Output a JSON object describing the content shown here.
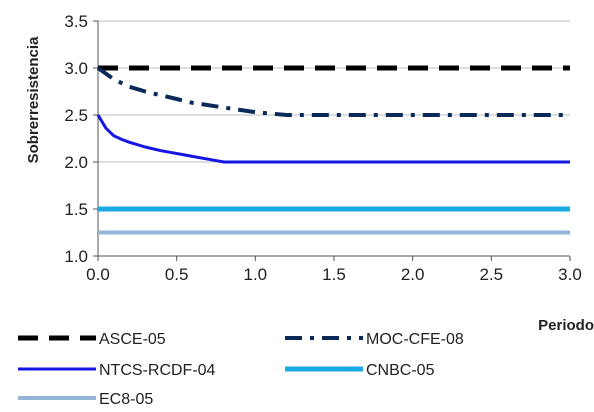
{
  "chart_data": {
    "type": "line",
    "title": "",
    "xlabel": "Periodo",
    "ylabel": "Sobrerresistencia",
    "xlim": [
      0.0,
      3.0
    ],
    "ylim": [
      1.0,
      3.5
    ],
    "xticks": [
      "0.0",
      "0.5",
      "1.0",
      "1.5",
      "2.0",
      "2.5",
      "3.0"
    ],
    "yticks": [
      "1.0",
      "1.5",
      "2.0",
      "2.5",
      "3.0",
      "3.5"
    ],
    "grid": "horizontal",
    "legend_position": "bottom",
    "series": [
      {
        "name": "ASCE-05",
        "color": "#000000",
        "style": "dashed",
        "x": [
          0.0,
          3.0
        ],
        "y": [
          3.0,
          3.0
        ]
      },
      {
        "name": "MOC-CFE-08",
        "color": "#0b2a5a",
        "style": "dash-dot",
        "x": [
          0.0,
          0.1,
          0.2,
          0.3,
          0.4,
          0.5,
          0.6,
          0.8,
          1.0,
          1.2,
          1.25,
          2.0,
          3.0
        ],
        "y": [
          3.0,
          2.88,
          2.8,
          2.75,
          2.71,
          2.67,
          2.63,
          2.58,
          2.53,
          2.5,
          2.5,
          2.5,
          2.5
        ]
      },
      {
        "name": "NTCS-RCDF-04",
        "color": "#1515e6",
        "style": "solid",
        "x": [
          0.0,
          0.05,
          0.1,
          0.15,
          0.2,
          0.3,
          0.4,
          0.5,
          0.6,
          0.7,
          0.8,
          0.85,
          1.0,
          2.0,
          3.0
        ],
        "y": [
          2.5,
          2.36,
          2.28,
          2.24,
          2.21,
          2.16,
          2.12,
          2.09,
          2.06,
          2.03,
          2.0,
          2.0,
          2.0,
          2.0,
          2.0
        ]
      },
      {
        "name": "CNBC-05",
        "color": "#1aa9e3",
        "style": "solid",
        "x": [
          0.0,
          3.0
        ],
        "y": [
          1.5,
          1.5
        ]
      },
      {
        "name": "EC8-05",
        "color": "#93b6d8",
        "style": "solid",
        "x": [
          0.0,
          3.0
        ],
        "y": [
          1.25,
          1.25
        ]
      }
    ]
  }
}
